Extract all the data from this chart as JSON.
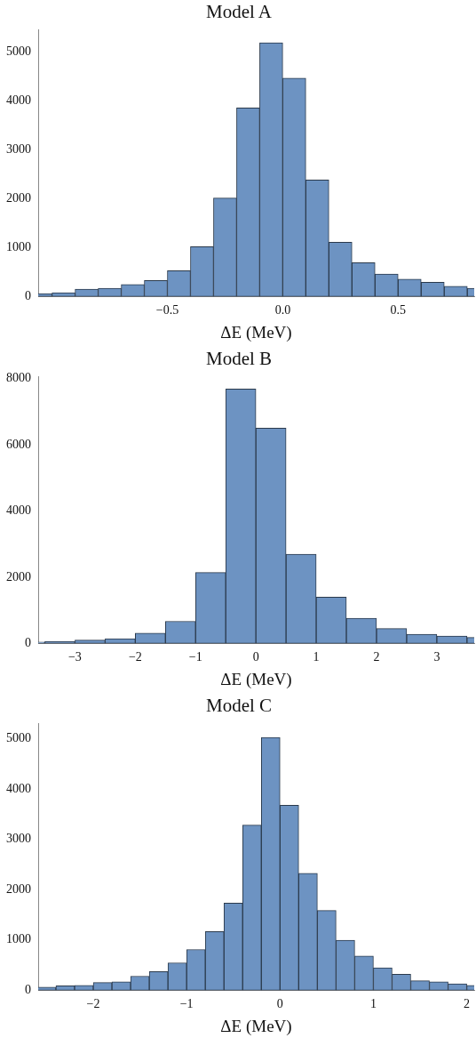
{
  "chart_data": [
    {
      "type": "histogram",
      "title": "Model A",
      "xlabel": "ΔE (MeV)",
      "color": "#6d93c2",
      "grid": false,
      "bins": [
        -1.1,
        -1.0,
        -0.9,
        -0.8,
        -0.7,
        -0.6,
        -0.5,
        -0.4,
        -0.3,
        -0.2,
        -0.1,
        0.0,
        0.1,
        0.2,
        0.3,
        0.4,
        0.5,
        0.6,
        0.7,
        0.8,
        0.9
      ],
      "values": [
        60,
        80,
        150,
        170,
        245,
        330,
        530,
        1020,
        2010,
        3850,
        5180,
        4460,
        2380,
        1110,
        690,
        460,
        355,
        290,
        210,
        170
      ],
      "xlim": [
        -1.06,
        0.83
      ],
      "xticks": [
        {
          "value": -0.5,
          "label": "−0.5"
        },
        {
          "value": 0,
          "label": "0.0"
        },
        {
          "value": 0.5,
          "label": "0.5"
        }
      ],
      "ylim": [
        0,
        5450
      ],
      "yticks": [
        0,
        1000,
        2000,
        3000,
        4000,
        5000
      ]
    },
    {
      "type": "histogram",
      "title": "Model B",
      "xlabel": "ΔE (MeV)",
      "color": "#6d93c2",
      "grid": false,
      "bins": [
        -4,
        -3.5,
        -3,
        -2.5,
        -2,
        -1.5,
        -1,
        -0.5,
        0,
        0.5,
        1,
        1.5,
        2,
        2.5,
        3,
        3.5,
        4
      ],
      "values": [
        45,
        65,
        100,
        145,
        310,
        670,
        2145,
        7690,
        6510,
        2700,
        1400,
        760,
        450,
        280,
        225,
        180
      ],
      "xlim": [
        -3.61,
        3.62
      ],
      "xticks": [
        {
          "value": -3,
          "label": "−3"
        },
        {
          "value": -2,
          "label": "−2"
        },
        {
          "value": -1,
          "label": "−1"
        },
        0,
        1,
        2,
        3
      ],
      "ylim": [
        0,
        8070
      ],
      "yticks": [
        0,
        2000,
        4000,
        6000,
        8000
      ]
    },
    {
      "type": "histogram",
      "title": "Model C",
      "xlabel": "ΔE (MeV)",
      "color": "#6d93c2",
      "grid": false,
      "bins": [
        -2.6,
        -2.4,
        -2.2,
        -2.0,
        -1.8,
        -1.6,
        -1.4,
        -1.2,
        -1.0,
        -0.8,
        -0.6,
        -0.4,
        -0.2,
        0.0,
        0.2,
        0.4,
        0.6,
        0.8,
        1.0,
        1.2,
        1.4,
        1.6,
        1.8,
        2.0,
        2.2
      ],
      "values": [
        65,
        90,
        100,
        155,
        170,
        280,
        370,
        545,
        810,
        1165,
        1730,
        3280,
        5020,
        3675,
        2325,
        1585,
        995,
        680,
        445,
        320,
        190,
        170,
        130,
        100
      ],
      "xlim": [
        -2.59,
        2.08
      ],
      "xticks": [
        {
          "value": -2,
          "label": "−2"
        },
        {
          "value": -1,
          "label": "−1"
        },
        0,
        1,
        2
      ],
      "ylim": [
        0,
        5300
      ],
      "yticks": [
        0,
        1000,
        2000,
        3000,
        4000,
        5000
      ]
    }
  ]
}
